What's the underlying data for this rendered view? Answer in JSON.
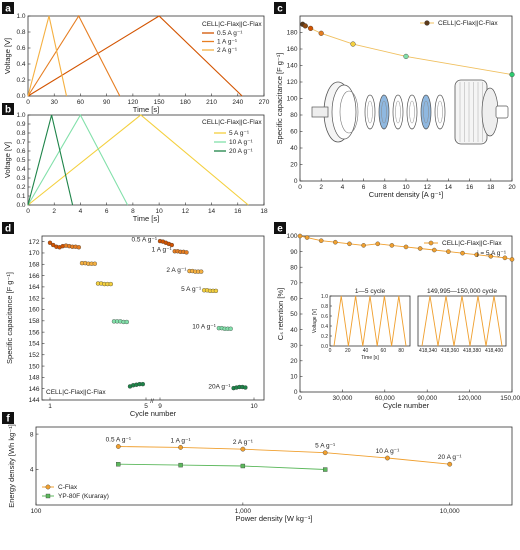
{
  "figure": {
    "panels": [
      "a",
      "b",
      "c",
      "d",
      "e",
      "f"
    ]
  },
  "chart_data": [
    {
      "id": "a",
      "type": "line",
      "xlabel": "Time [s]",
      "ylabel": "Voltage [V]",
      "xlim": [
        0,
        270
      ],
      "ylim": [
        0,
        1.0
      ],
      "xticks": [
        0,
        30,
        60,
        90,
        120,
        150,
        180,
        210,
        240,
        270
      ],
      "yticks": [
        0.0,
        0.2,
        0.4,
        0.6,
        0.8,
        1.0
      ],
      "legend_title": "CELL|C-Flax||C-Flax",
      "legend_position": "top-right",
      "series": [
        {
          "name": "0.5 A g⁻¹",
          "color": "#d35400",
          "x": [
            0,
            150,
            245
          ],
          "y": [
            0,
            1.0,
            0
          ]
        },
        {
          "name": "1 A g⁻¹",
          "color": "#e67e22",
          "x": [
            0,
            58,
            105
          ],
          "y": [
            0,
            1.0,
            0
          ]
        },
        {
          "name": "2 A g⁻¹",
          "color": "#f5b041",
          "x": [
            0,
            24,
            44
          ],
          "y": [
            0,
            1.0,
            0
          ]
        }
      ]
    },
    {
      "id": "b",
      "type": "line",
      "xlabel": "Time [s]",
      "ylabel": "Voltage [V]",
      "xlim": [
        0,
        18
      ],
      "ylim": [
        0,
        1.0
      ],
      "xticks": [
        0,
        2,
        4,
        6,
        8,
        10,
        12,
        14,
        16,
        18
      ],
      "yticks": [
        0.0,
        0.1,
        0.2,
        0.3,
        0.4,
        0.5,
        0.6,
        0.7,
        0.8,
        0.9,
        1.0
      ],
      "legend_title": "CELL|C-Flax||C-Flax",
      "legend_position": "top-right",
      "series": [
        {
          "name": "5 A g⁻¹",
          "color": "#f4d03f",
          "x": [
            0,
            8.6,
            16.8
          ],
          "y": [
            0,
            1.0,
            0
          ]
        },
        {
          "name": "10 A g⁻¹",
          "color": "#82e0aa",
          "x": [
            0,
            4.0,
            7.6
          ],
          "y": [
            0,
            1.0,
            0
          ]
        },
        {
          "name": "20 A g⁻¹",
          "color": "#1e8449",
          "x": [
            0,
            1.8,
            3.4
          ],
          "y": [
            0,
            1.0,
            0
          ]
        }
      ]
    },
    {
      "id": "c",
      "type": "line",
      "xlabel": "Current density [A g⁻¹]",
      "ylabel": "Specific capacitance [F g⁻¹]",
      "xlim": [
        0,
        20
      ],
      "ylim": [
        0,
        200
      ],
      "xticks": [
        0,
        2,
        4,
        6,
        8,
        10,
        12,
        14,
        16,
        18,
        20
      ],
      "yticks": [
        0,
        20,
        40,
        60,
        80,
        100,
        120,
        140,
        160,
        180
      ],
      "legend_position": "top-right",
      "series": [
        {
          "name": "CELL|C-Flax||C-Flax",
          "x": [
            0.25,
            0.5,
            1,
            2,
            5,
            10,
            20
          ],
          "y": [
            190,
            188,
            185,
            179,
            166,
            151,
            129
          ],
          "colors": [
            "#5d3a1a",
            "#8e4a12",
            "#d35400",
            "#e67e22",
            "#f4d03f",
            "#82e0aa",
            "#2ecc71"
          ]
        }
      ],
      "inset": {
        "kind": "exploded cell drawing",
        "highlight_color": "#8fb8e0"
      }
    },
    {
      "id": "d",
      "type": "scatter",
      "xlabel": "Cycle number",
      "ylabel": "Specific capacitance [F g⁻¹]",
      "ylim": [
        144,
        173
      ],
      "yticks": [
        144,
        146,
        148,
        150,
        152,
        154,
        156,
        158,
        160,
        162,
        164,
        166,
        168,
        170,
        172
      ],
      "xtick_labels": [
        "1",
        "5",
        "9",
        "10"
      ],
      "legend_title": "CELL|C-Flax||C-Flax",
      "legend_position": "bottom-left",
      "annotations": [
        "0.5 A g⁻¹",
        "1 A g⁻¹",
        "2 A g⁻¹",
        "5 A g⁻¹",
        "10 A g⁻¹",
        "20A g⁻¹"
      ],
      "groups": [
        {
          "rate": "0.5 A g⁻¹",
          "color": "#d35400",
          "seg1": [
            171.8,
            171.4,
            171.1,
            171.0,
            171.2
          ],
          "seg2": [
            172.1,
            172.0,
            171.8,
            171.6,
            171.4
          ]
        },
        {
          "rate": "1 A g⁻¹",
          "color": "#e67e22",
          "seg1": [
            171.3,
            171.2,
            171.1,
            171.1,
            171.0
          ],
          "seg2": [
            170.3,
            170.3,
            170.2,
            170.2,
            170.1
          ]
        },
        {
          "rate": "2 A g⁻¹",
          "color": "#f5b041",
          "seg1": [
            168.2,
            168.2,
            168.1,
            168.1,
            168.1
          ],
          "seg2": [
            166.8,
            166.8,
            166.7,
            166.7,
            166.7
          ]
        },
        {
          "rate": "5 A g⁻¹",
          "color": "#f4d03f",
          "seg1": [
            164.6,
            164.6,
            164.5,
            164.5,
            164.5
          ],
          "seg2": [
            163.4,
            163.4,
            163.3,
            163.3,
            163.3
          ]
        },
        {
          "rate": "10 A g⁻¹",
          "color": "#82e0aa",
          "seg1": [
            157.9,
            157.9,
            157.9,
            157.8,
            157.8
          ],
          "seg2": [
            156.7,
            156.7,
            156.6,
            156.6,
            156.6
          ]
        },
        {
          "rate": "20A g⁻¹",
          "color": "#1e8449",
          "seg1": [
            146.4,
            146.6,
            146.7,
            146.8,
            146.8
          ],
          "seg2": [
            146.1,
            146.2,
            146.3,
            146.3,
            146.2
          ]
        }
      ]
    },
    {
      "id": "e",
      "type": "line",
      "xlabel": "Cycle number",
      "ylabel": "Cₛ retention [%]",
      "xlim": [
        0,
        150000
      ],
      "ylim": [
        0,
        100
      ],
      "xticks": [
        0,
        30000,
        60000,
        90000,
        120000,
        150000
      ],
      "xtick_labels": [
        "0",
        "30,000",
        "60,000",
        "90,000",
        "120,000",
        "150,000"
      ],
      "yticks": [
        0,
        10,
        20,
        30,
        40,
        50,
        60,
        70,
        80,
        90,
        100
      ],
      "legend_position": "top-right",
      "annotation": "j = 5 A g⁻¹",
      "series": [
        {
          "name": "CELL|C-Flax||C-Flax",
          "color": "#f0a030",
          "x": [
            1,
            5000,
            15000,
            25000,
            35000,
            45000,
            55000,
            65000,
            75000,
            85000,
            95000,
            105000,
            115000,
            125000,
            135000,
            145000,
            150000
          ],
          "y": [
            100,
            99,
            97,
            96,
            95,
            94,
            95,
            94,
            93,
            92,
            91,
            90,
            89,
            88,
            87,
            86,
            85
          ]
        }
      ],
      "inset": {
        "ylabel": "Voltage [V]",
        "xlabel": "Time [s]",
        "left_title": "1—5 cycle",
        "right_title": "149,995—150,000 cycle",
        "left_xticks": [
          0,
          20,
          40,
          60,
          80
        ],
        "left_xtick_labels": [
          "0",
          "20",
          "40",
          "60",
          "80"
        ],
        "right_xtick_labels": [
          "418,340",
          "418,360",
          "418,380",
          "418,400"
        ],
        "yticks": [
          0.0,
          0.2,
          0.4,
          0.6,
          0.8,
          1.0
        ],
        "cycles_per_side": 5,
        "color": "#f0a030"
      }
    },
    {
      "id": "f",
      "type": "line",
      "xscale": "log",
      "xlabel": "Power density [W kg⁻¹]",
      "ylabel": "Energy density [Wh kg⁻¹]",
      "xlim": [
        100,
        20000
      ],
      "ylim": [
        0,
        8.8
      ],
      "xtick_labels": [
        "100",
        "1,000",
        "10,000"
      ],
      "xtick_values": [
        100,
        1000,
        10000
      ],
      "yticks": [
        4,
        8
      ],
      "legend_position": "bottom-left",
      "annotations": [
        {
          "text": "0.5 A g⁻¹",
          "x": 250
        },
        {
          "text": "1 A g⁻¹",
          "x": 500
        },
        {
          "text": "2 A g⁻¹",
          "x": 1000
        },
        {
          "text": "5 A g⁻¹",
          "x": 2500
        },
        {
          "text": "10 A g⁻¹",
          "x": 5000
        },
        {
          "text": "20 A g⁻¹",
          "x": 10000
        }
      ],
      "series": [
        {
          "name": "C-Flax",
          "color": "#f0a030",
          "marker": "circle",
          "x": [
            250,
            500,
            1000,
            2500,
            5000,
            10000
          ],
          "y": [
            6.6,
            6.5,
            6.3,
            5.9,
            5.3,
            4.6
          ]
        },
        {
          "name": "YP-80F (Kuraray)",
          "color": "#5cb85c",
          "marker": "square",
          "x": [
            250,
            500,
            1000,
            2500
          ],
          "y": [
            4.6,
            4.5,
            4.4,
            4.0
          ]
        }
      ]
    }
  ]
}
